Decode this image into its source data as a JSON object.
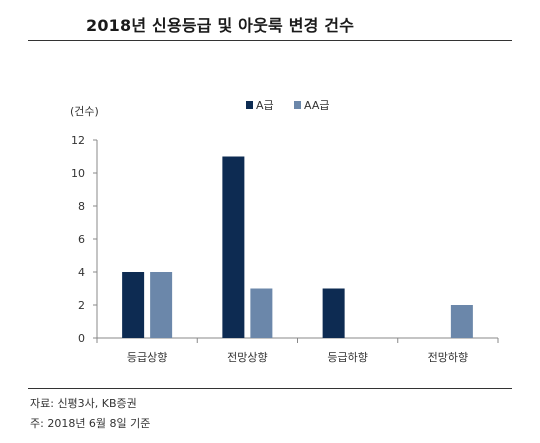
{
  "title": "2018년 신용등급 및 아웃룩 변경 건수",
  "notes": {
    "source": "자료: 신평3사, KB증권",
    "basis": "주: 2018년 6월 8일 기준"
  },
  "colors": {
    "A": "#0d2b52",
    "AA": "#6b87aa",
    "axis": "#888888"
  },
  "chart_data": {
    "type": "bar",
    "title": "2018년 신용등급 및 아웃룩 변경 건수",
    "ylabel": "(건수)",
    "xlabel": "",
    "categories": [
      "등급상향",
      "전망상향",
      "등급하향",
      "전망하향"
    ],
    "series": [
      {
        "name": "A급",
        "values": [
          4,
          11,
          3,
          0
        ]
      },
      {
        "name": "AA급",
        "values": [
          4,
          3,
          0,
          2
        ]
      }
    ],
    "ylim": [
      0,
      12
    ],
    "yticks": [
      0,
      2,
      4,
      6,
      8,
      10,
      12
    ],
    "grid": false,
    "legend": "top-center"
  }
}
